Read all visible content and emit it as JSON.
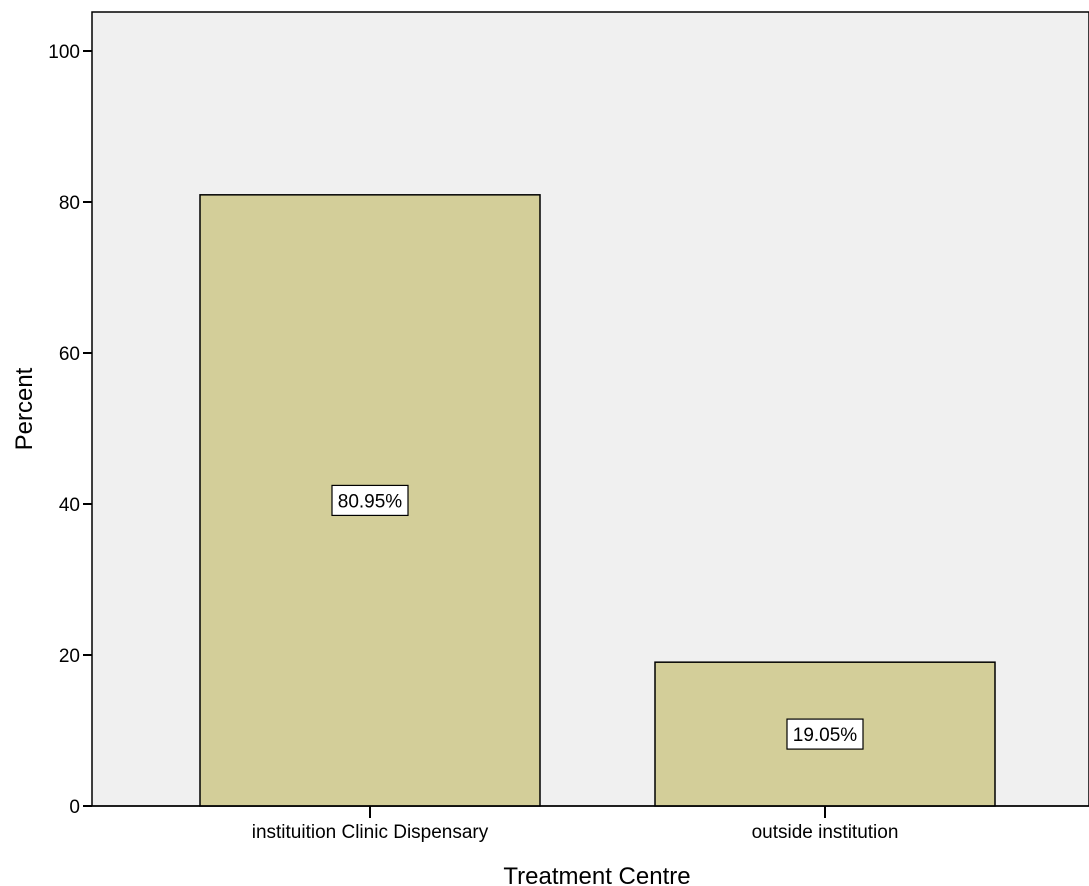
{
  "chart_data": {
    "type": "bar",
    "xlabel": "Treatment Centre",
    "ylabel": "Percent",
    "ylim": [
      0,
      100
    ],
    "yticks": [
      0,
      20,
      40,
      60,
      80,
      100
    ],
    "categories": [
      "instituition Clinic Dispensary",
      "outside institution"
    ],
    "values": [
      80.95,
      19.05
    ],
    "data_labels": [
      "80.95%",
      "19.05%"
    ],
    "grid": false,
    "legend": "none"
  },
  "colors": {
    "plot_background": "#f0f0f0",
    "bar_fill": "#d3ce99",
    "bar_stroke": "#000000",
    "label_box_fill": "#ffffff"
  }
}
